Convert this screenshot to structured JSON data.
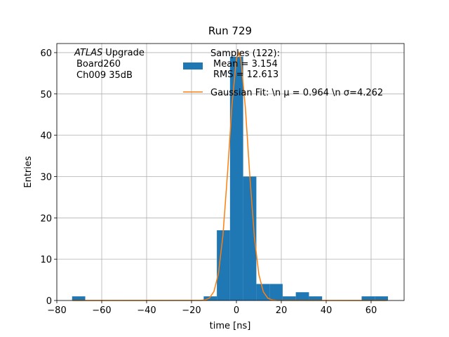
{
  "chart_data": {
    "type": "histogram",
    "title": "Run 729",
    "xlabel": "time [ns]",
    "ylabel": "Entries",
    "annotation_emph": "ATLAS",
    "annotation": [
      "Upgrade",
      "Board260",
      "Ch009 35dB"
    ],
    "xlim": [
      -80,
      74.7
    ],
    "ylim": [
      0,
      62.2
    ],
    "xticks": [
      {
        "value": -80,
        "label": "−80"
      },
      {
        "value": -60,
        "label": "−60"
      },
      {
        "value": -40,
        "label": "−40"
      },
      {
        "value": -20,
        "label": "−20"
      },
      0,
      20,
      40,
      60
    ],
    "yticks": [
      0,
      10,
      20,
      30,
      40,
      50,
      60
    ],
    "grid": true,
    "legend": "upper right",
    "series": [
      {
        "name": [
          "Samples (122):",
          "Mean = 3.154",
          "RMS = 12.613"
        ],
        "color": "#1f77b4",
        "bins": [
          -73.2,
          -67.34,
          -61.48,
          -55.61,
          -49.75,
          -43.89,
          -38.03,
          -32.16,
          -26.3,
          -20.44,
          -14.58,
          -8.71,
          -2.85,
          3.01,
          8.88,
          14.74,
          20.6,
          26.46,
          32.33,
          38.19,
          44.05,
          49.91,
          55.78,
          61.64,
          67.5
        ],
        "counts": [
          1,
          0,
          0,
          0,
          0,
          0,
          0,
          0,
          0,
          0,
          1,
          17,
          59,
          30,
          4,
          4,
          1,
          2,
          1,
          0,
          0,
          0,
          1,
          1
        ]
      },
      {
        "type": "line",
        "name": "Gaussian Fit: \\n μ = 0.964 \\n σ=4.262",
        "color": "#ff7f0e",
        "x": [
          -73,
          -16,
          -14,
          -12,
          -10,
          -8,
          -6,
          -4,
          -2,
          0,
          1,
          2,
          4,
          6,
          8,
          10,
          12,
          14,
          16,
          18,
          67
        ],
        "values": [
          0,
          0.02,
          0.13,
          0.59,
          2.2,
          6.57,
          15.8,
          30.5,
          47.1,
          58.5,
          60,
          58.3,
          46.6,
          29.9,
          15.4,
          6.3,
          2.1,
          0.56,
          0.12,
          0.02,
          0
        ]
      }
    ]
  }
}
